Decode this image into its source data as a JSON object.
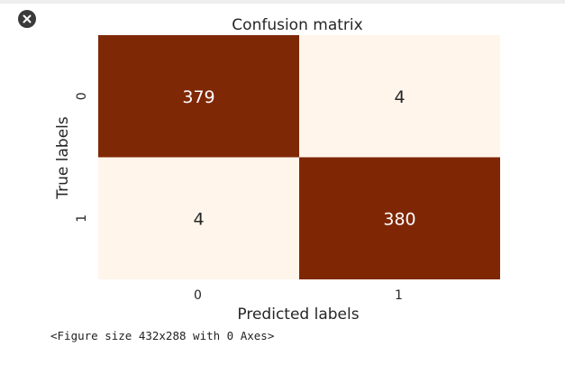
{
  "output_controls": {
    "close_icon": "close-icon"
  },
  "chart_data": {
    "type": "heatmap",
    "title": "Confusion matrix",
    "xlabel": "Predicted labels",
    "ylabel": "True labels",
    "x_categories": [
      "0",
      "1"
    ],
    "y_categories": [
      "0",
      "1"
    ],
    "values": [
      [
        379,
        4
      ],
      [
        4,
        380
      ]
    ],
    "colormap": {
      "low": "#fff5eb",
      "high": "#7f2704"
    },
    "annotation_colors": {
      "on_dark": "#ffffff",
      "on_light": "#262626"
    },
    "colorbar": false,
    "grid": false
  },
  "figure_output_text": "<Figure size 432x288 with 0 Axes>"
}
